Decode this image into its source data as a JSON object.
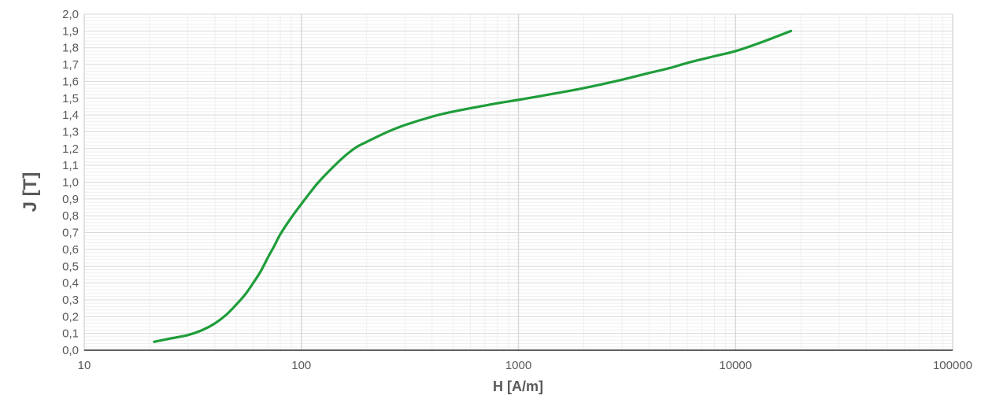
{
  "chart_data": {
    "type": "line",
    "title": "",
    "xlabel": "H [A/m]",
    "ylabel": "J [T]",
    "x_scale": "log",
    "xlim": [
      10,
      100000
    ],
    "ylim": [
      0.0,
      2.0
    ],
    "x_ticks": [
      "10",
      "100",
      "1000",
      "10000",
      "100000"
    ],
    "y_ticks": [
      "0,0",
      "0,1",
      "0,2",
      "0,3",
      "0,4",
      "0,5",
      "0,6",
      "0,7",
      "0,8",
      "0,9",
      "1,0",
      "1,1",
      "1,2",
      "1,3",
      "1,4",
      "1,5",
      "1,6",
      "1,7",
      "1,8",
      "1,9",
      "2,0"
    ],
    "grid": true,
    "legend": "none",
    "colors": {
      "line": "#1f9d3a",
      "grid_major": "#d9d9d9",
      "grid_minor": "#efefef",
      "axis": "#000000",
      "text": "#595959"
    },
    "series": [
      {
        "x": [
          21,
          25,
          30,
          35,
          40,
          45,
          50,
          55,
          60,
          65,
          70,
          75,
          80,
          90,
          100,
          110,
          120,
          140,
          160,
          180,
          200,
          250,
          300,
          400,
          500,
          600,
          800,
          1000,
          1500,
          2000,
          3000,
          4000,
          5000,
          6000,
          8000,
          10000,
          13000,
          18000
        ],
        "y": [
          0.05,
          0.07,
          0.09,
          0.12,
          0.16,
          0.21,
          0.27,
          0.33,
          0.4,
          0.47,
          0.55,
          0.62,
          0.69,
          0.79,
          0.87,
          0.94,
          1.0,
          1.09,
          1.16,
          1.21,
          1.24,
          1.3,
          1.34,
          1.39,
          1.42,
          1.44,
          1.47,
          1.49,
          1.53,
          1.56,
          1.61,
          1.65,
          1.68,
          1.71,
          1.75,
          1.78,
          1.83,
          1.9
        ]
      }
    ]
  }
}
